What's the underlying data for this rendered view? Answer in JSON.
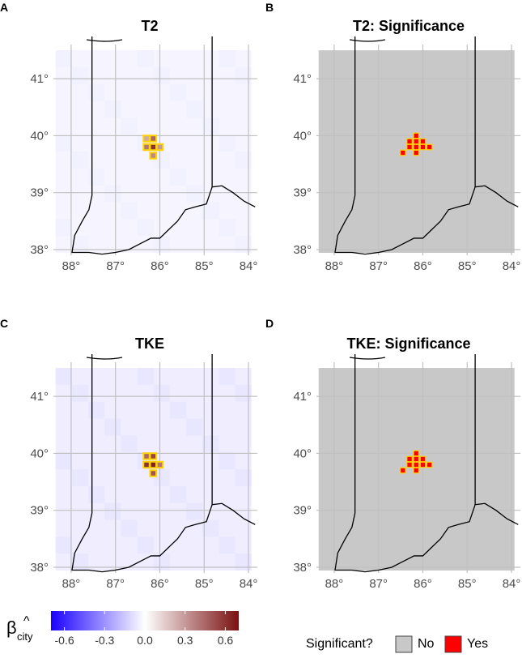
{
  "colors": {
    "panel_background": "#ffffff",
    "grey_fill": "#c8c8c8",
    "gridline": "#c0c0c0",
    "boundary": "#000000",
    "significant_red": "#ff0000",
    "highlight_yellow": "#ffd400",
    "beta_low": "#1a00ff",
    "beta_mid": "#ffffff",
    "beta_high": "#7a1010"
  },
  "chart_data": [
    {
      "type": "heatmap",
      "panel_letter": "A",
      "title": "T2",
      "variable": "beta_city",
      "x_ticks": [
        "88°",
        "87°",
        "86°",
        "85°",
        "84°"
      ],
      "y_ticks": [
        "41°",
        "40°",
        "39°",
        "38°"
      ],
      "lon_range": [
        -88.4,
        -83.8
      ],
      "lat_range": [
        37.9,
        41.6
      ],
      "background_value": -0.03,
      "cells": [
        {
          "lon": -86.3,
          "lat": 39.95,
          "value": 0.25
        },
        {
          "lon": -86.15,
          "lat": 39.95,
          "value": 0.45
        },
        {
          "lon": -86.3,
          "lat": 39.8,
          "value": 0.4
        },
        {
          "lon": -86.15,
          "lat": 39.8,
          "value": 0.6
        },
        {
          "lon": -86.0,
          "lat": 39.8,
          "value": 0.3
        },
        {
          "lon": -86.15,
          "lat": 39.65,
          "value": 0.35
        }
      ]
    },
    {
      "type": "heatmap",
      "panel_letter": "B",
      "title": "T2: Significance",
      "variable": "significant",
      "x_ticks": [
        "88°",
        "87°",
        "86°",
        "85°",
        "84°"
      ],
      "y_ticks": [
        "41°",
        "40°",
        "39°",
        "38°"
      ],
      "lon_range": [
        -88.4,
        -83.8
      ],
      "lat_range": [
        37.9,
        41.6
      ],
      "significant_cells": [
        {
          "lon": -86.15,
          "lat": 40.0
        },
        {
          "lon": -86.3,
          "lat": 39.9
        },
        {
          "lon": -86.15,
          "lat": 39.9
        },
        {
          "lon": -86.0,
          "lat": 39.9
        },
        {
          "lon": -86.3,
          "lat": 39.8
        },
        {
          "lon": -86.15,
          "lat": 39.8
        },
        {
          "lon": -86.0,
          "lat": 39.8
        },
        {
          "lon": -85.85,
          "lat": 39.8
        },
        {
          "lon": -86.45,
          "lat": 39.7
        },
        {
          "lon": -86.15,
          "lat": 39.7
        }
      ]
    },
    {
      "type": "heatmap",
      "panel_letter": "C",
      "title": "TKE",
      "variable": "beta_city",
      "x_ticks": [
        "88°",
        "87°",
        "86°",
        "85°",
        "84°"
      ],
      "y_ticks": [
        "41°",
        "40°",
        "39°",
        "38°"
      ],
      "lon_range": [
        -88.4,
        -83.8
      ],
      "lat_range": [
        37.9,
        41.6
      ],
      "background_value": -0.05,
      "cells": [
        {
          "lon": -86.3,
          "lat": 39.95,
          "value": 0.45
        },
        {
          "lon": -86.15,
          "lat": 39.95,
          "value": 0.55
        },
        {
          "lon": -86.3,
          "lat": 39.8,
          "value": 0.6
        },
        {
          "lon": -86.15,
          "lat": 39.8,
          "value": 0.65
        },
        {
          "lon": -86.0,
          "lat": 39.8,
          "value": 0.4
        },
        {
          "lon": -86.15,
          "lat": 39.65,
          "value": 0.5
        }
      ]
    },
    {
      "type": "heatmap",
      "panel_letter": "D",
      "title": "TKE: Significance",
      "variable": "significant",
      "x_ticks": [
        "88°",
        "87°",
        "86°",
        "85°",
        "84°"
      ],
      "y_ticks": [
        "41°",
        "40°",
        "39°",
        "38°"
      ],
      "lon_range": [
        -88.4,
        -83.8
      ],
      "lat_range": [
        37.9,
        41.6
      ],
      "significant_cells": [
        {
          "lon": -86.15,
          "lat": 40.0
        },
        {
          "lon": -86.3,
          "lat": 39.9
        },
        {
          "lon": -86.15,
          "lat": 39.9
        },
        {
          "lon": -86.0,
          "lat": 39.9
        },
        {
          "lon": -86.3,
          "lat": 39.8
        },
        {
          "lon": -86.15,
          "lat": 39.8
        },
        {
          "lon": -86.0,
          "lat": 39.8
        },
        {
          "lon": -85.85,
          "lat": 39.8
        },
        {
          "lon": -86.45,
          "lat": 39.7
        },
        {
          "lon": -86.15,
          "lat": 39.7
        }
      ]
    }
  ],
  "colorbar": {
    "symbol": "β",
    "subscript": "city",
    "hat": "^",
    "range": [
      -0.7,
      0.7
    ],
    "tick_values": [
      -0.6,
      -0.3,
      0.0,
      0.3,
      0.6
    ],
    "tick_labels": [
      "-0.6",
      "-0.3",
      "0.0",
      "0.3",
      "0.6"
    ]
  },
  "significance_legend": {
    "title": "Significant?",
    "items": [
      {
        "label": "No",
        "color": "#c8c8c8"
      },
      {
        "label": "Yes",
        "color": "#ff0000"
      }
    ]
  }
}
